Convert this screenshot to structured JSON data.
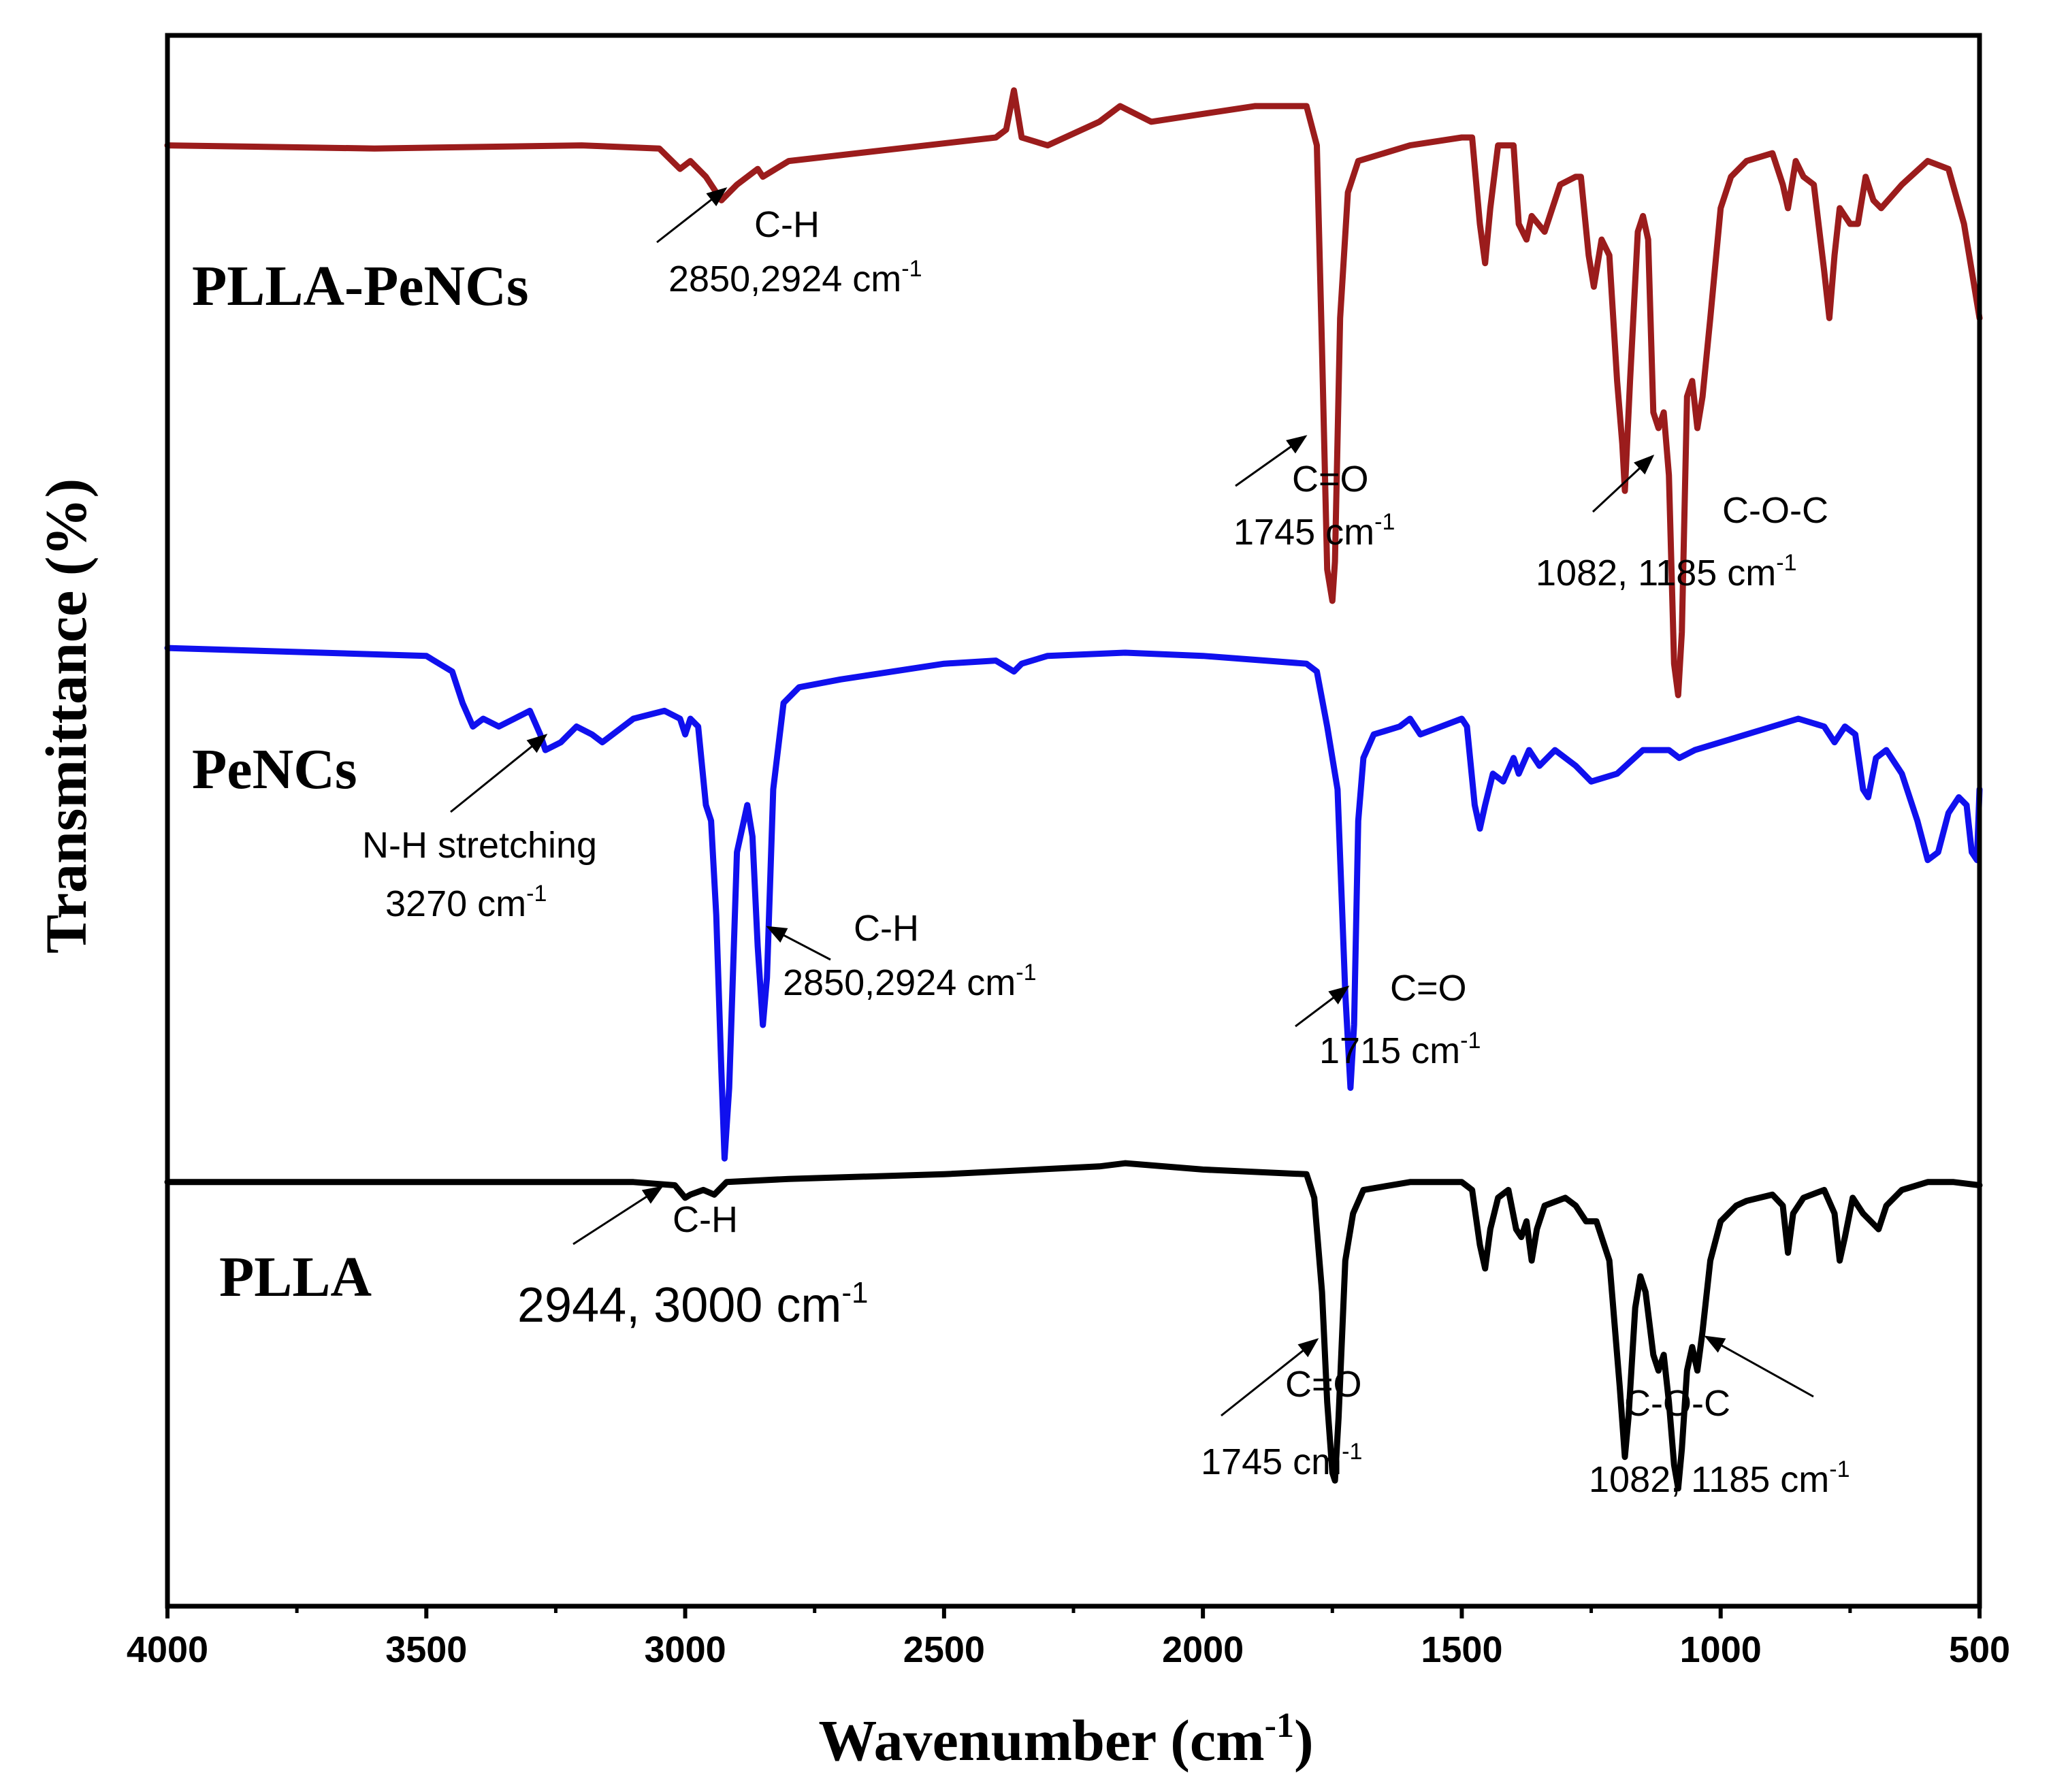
{
  "chart_data": {
    "type": "line",
    "title": "",
    "xlabel": "Wavenumber (cm",
    "xlabel_sup": "-1",
    "xlabel_end": ")",
    "ylabel": "Transmittance (%)",
    "xlim": [
      4000,
      500
    ],
    "x_ticks": [
      4000,
      3500,
      3000,
      2500,
      2000,
      1500,
      1000,
      500
    ],
    "y_ticks": "none",
    "grid": false,
    "legend": "none (series labelled inline)",
    "series": [
      {
        "name": "PLLA-PeNCs",
        "color": "#9b1c1c",
        "baseline": 0.93,
        "points": [
          [
            4000,
            0.93
          ],
          [
            3600,
            0.928
          ],
          [
            3200,
            0.93
          ],
          [
            3050,
            0.928
          ],
          [
            3010,
            0.915
          ],
          [
            2990,
            0.92
          ],
          [
            2960,
            0.91
          ],
          [
            2930,
            0.895
          ],
          [
            2900,
            0.905
          ],
          [
            2860,
            0.915
          ],
          [
            2850,
            0.91
          ],
          [
            2800,
            0.92
          ],
          [
            2400,
            0.935
          ],
          [
            2380,
            0.94
          ],
          [
            2365,
            0.965
          ],
          [
            2350,
            0.935
          ],
          [
            2300,
            0.93
          ],
          [
            2200,
            0.945
          ],
          [
            2160,
            0.955
          ],
          [
            2100,
            0.945
          ],
          [
            1900,
            0.955
          ],
          [
            1800,
            0.955
          ],
          [
            1780,
            0.93
          ],
          [
            1770,
            0.8
          ],
          [
            1760,
            0.66
          ],
          [
            1750,
            0.64
          ],
          [
            1745,
            0.665
          ],
          [
            1735,
            0.82
          ],
          [
            1720,
            0.9
          ],
          [
            1700,
            0.92
          ],
          [
            1600,
            0.93
          ],
          [
            1500,
            0.935
          ],
          [
            1480,
            0.935
          ],
          [
            1465,
            0.88
          ],
          [
            1455,
            0.855
          ],
          [
            1445,
            0.89
          ],
          [
            1430,
            0.93
          ],
          [
            1400,
            0.93
          ],
          [
            1390,
            0.88
          ],
          [
            1375,
            0.87
          ],
          [
            1365,
            0.885
          ],
          [
            1340,
            0.875
          ],
          [
            1310,
            0.905
          ],
          [
            1280,
            0.91
          ],
          [
            1270,
            0.91
          ],
          [
            1255,
            0.86
          ],
          [
            1245,
            0.84
          ],
          [
            1230,
            0.87
          ],
          [
            1215,
            0.86
          ],
          [
            1200,
            0.78
          ],
          [
            1190,
            0.74
          ],
          [
            1185,
            0.71
          ],
          [
            1175,
            0.78
          ],
          [
            1160,
            0.875
          ],
          [
            1150,
            0.885
          ],
          [
            1140,
            0.87
          ],
          [
            1130,
            0.76
          ],
          [
            1120,
            0.75
          ],
          [
            1110,
            0.76
          ],
          [
            1100,
            0.72
          ],
          [
            1090,
            0.6
          ],
          [
            1082,
            0.58
          ],
          [
            1075,
            0.62
          ],
          [
            1065,
            0.77
          ],
          [
            1055,
            0.78
          ],
          [
            1045,
            0.75
          ],
          [
            1035,
            0.77
          ],
          [
            1020,
            0.82
          ],
          [
            1000,
            0.89
          ],
          [
            980,
            0.91
          ],
          [
            950,
            0.92
          ],
          [
            900,
            0.925
          ],
          [
            880,
            0.905
          ],
          [
            870,
            0.89
          ],
          [
            855,
            0.92
          ],
          [
            840,
            0.91
          ],
          [
            820,
            0.905
          ],
          [
            800,
            0.85
          ],
          [
            790,
            0.82
          ],
          [
            780,
            0.86
          ],
          [
            770,
            0.89
          ],
          [
            750,
            0.88
          ],
          [
            735,
            0.88
          ],
          [
            720,
            0.91
          ],
          [
            705,
            0.895
          ],
          [
            690,
            0.89
          ],
          [
            650,
            0.905
          ],
          [
            600,
            0.92
          ],
          [
            560,
            0.915
          ],
          [
            530,
            0.88
          ],
          [
            510,
            0.84
          ],
          [
            500,
            0.82
          ]
        ]
      },
      {
        "name": "PeNCs",
        "color": "#1010ee",
        "baseline": 0.61,
        "points": [
          [
            4000,
            0.61
          ],
          [
            3500,
            0.605
          ],
          [
            3450,
            0.595
          ],
          [
            3430,
            0.575
          ],
          [
            3410,
            0.56
          ],
          [
            3390,
            0.565
          ],
          [
            3360,
            0.56
          ],
          [
            3330,
            0.565
          ],
          [
            3300,
            0.57
          ],
          [
            3280,
            0.555
          ],
          [
            3270,
            0.545
          ],
          [
            3240,
            0.55
          ],
          [
            3210,
            0.56
          ],
          [
            3180,
            0.555
          ],
          [
            3160,
            0.55
          ],
          [
            3100,
            0.565
          ],
          [
            3040,
            0.57
          ],
          [
            3010,
            0.565
          ],
          [
            3000,
            0.555
          ],
          [
            2990,
            0.565
          ],
          [
            2975,
            0.56
          ],
          [
            2960,
            0.51
          ],
          [
            2950,
            0.5
          ],
          [
            2940,
            0.44
          ],
          [
            2930,
            0.34
          ],
          [
            2924,
            0.285
          ],
          [
            2915,
            0.33
          ],
          [
            2900,
            0.48
          ],
          [
            2880,
            0.51
          ],
          [
            2870,
            0.49
          ],
          [
            2860,
            0.42
          ],
          [
            2850,
            0.37
          ],
          [
            2842,
            0.4
          ],
          [
            2830,
            0.52
          ],
          [
            2810,
            0.575
          ],
          [
            2780,
            0.585
          ],
          [
            2700,
            0.59
          ],
          [
            2500,
            0.6
          ],
          [
            2400,
            0.602
          ],
          [
            2365,
            0.595
          ],
          [
            2350,
            0.6
          ],
          [
            2300,
            0.605
          ],
          [
            2150,
            0.607
          ],
          [
            2000,
            0.605
          ],
          [
            1800,
            0.6
          ],
          [
            1780,
            0.595
          ],
          [
            1760,
            0.56
          ],
          [
            1740,
            0.52
          ],
          [
            1725,
            0.39
          ],
          [
            1715,
            0.33
          ],
          [
            1708,
            0.37
          ],
          [
            1700,
            0.5
          ],
          [
            1690,
            0.54
          ],
          [
            1670,
            0.555
          ],
          [
            1620,
            0.56
          ],
          [
            1600,
            0.565
          ],
          [
            1580,
            0.555
          ],
          [
            1500,
            0.565
          ],
          [
            1490,
            0.56
          ],
          [
            1475,
            0.51
          ],
          [
            1465,
            0.495
          ],
          [
            1455,
            0.51
          ],
          [
            1440,
            0.53
          ],
          [
            1420,
            0.525
          ],
          [
            1400,
            0.54
          ],
          [
            1390,
            0.53
          ],
          [
            1370,
            0.545
          ],
          [
            1350,
            0.535
          ],
          [
            1320,
            0.545
          ],
          [
            1280,
            0.535
          ],
          [
            1250,
            0.525
          ],
          [
            1200,
            0.53
          ],
          [
            1150,
            0.545
          ],
          [
            1100,
            0.545
          ],
          [
            1080,
            0.54
          ],
          [
            1050,
            0.545
          ],
          [
            1000,
            0.55
          ],
          [
            950,
            0.555
          ],
          [
            900,
            0.56
          ],
          [
            850,
            0.565
          ],
          [
            800,
            0.56
          ],
          [
            780,
            0.55
          ],
          [
            760,
            0.56
          ],
          [
            740,
            0.555
          ],
          [
            725,
            0.52
          ],
          [
            715,
            0.515
          ],
          [
            700,
            0.54
          ],
          [
            680,
            0.545
          ],
          [
            650,
            0.53
          ],
          [
            620,
            0.5
          ],
          [
            600,
            0.475
          ],
          [
            580,
            0.48
          ],
          [
            560,
            0.505
          ],
          [
            540,
            0.515
          ],
          [
            525,
            0.51
          ],
          [
            515,
            0.48
          ],
          [
            505,
            0.475
          ],
          [
            500,
            0.52
          ]
        ]
      },
      {
        "name": "PLLA",
        "color": "#000000",
        "baseline": 0.27,
        "points": [
          [
            4000,
            0.27
          ],
          [
            3500,
            0.27
          ],
          [
            3100,
            0.27
          ],
          [
            3020,
            0.268
          ],
          [
            3000,
            0.26
          ],
          [
            2990,
            0.262
          ],
          [
            2965,
            0.265
          ],
          [
            2944,
            0.262
          ],
          [
            2920,
            0.27
          ],
          [
            2800,
            0.272
          ],
          [
            2500,
            0.275
          ],
          [
            2200,
            0.28
          ],
          [
            2150,
            0.282
          ],
          [
            2000,
            0.278
          ],
          [
            1800,
            0.275
          ],
          [
            1785,
            0.26
          ],
          [
            1770,
            0.2
          ],
          [
            1760,
            0.13
          ],
          [
            1750,
            0.085
          ],
          [
            1745,
            0.08
          ],
          [
            1738,
            0.12
          ],
          [
            1725,
            0.22
          ],
          [
            1710,
            0.25
          ],
          [
            1690,
            0.265
          ],
          [
            1600,
            0.27
          ],
          [
            1500,
            0.27
          ],
          [
            1480,
            0.265
          ],
          [
            1465,
            0.23
          ],
          [
            1455,
            0.215
          ],
          [
            1445,
            0.24
          ],
          [
            1430,
            0.26
          ],
          [
            1410,
            0.265
          ],
          [
            1395,
            0.24
          ],
          [
            1385,
            0.235
          ],
          [
            1375,
            0.245
          ],
          [
            1365,
            0.22
          ],
          [
            1355,
            0.24
          ],
          [
            1340,
            0.255
          ],
          [
            1300,
            0.26
          ],
          [
            1280,
            0.255
          ],
          [
            1260,
            0.245
          ],
          [
            1240,
            0.245
          ],
          [
            1215,
            0.22
          ],
          [
            1205,
            0.18
          ],
          [
            1195,
            0.14
          ],
          [
            1185,
            0.095
          ],
          [
            1178,
            0.12
          ],
          [
            1165,
            0.19
          ],
          [
            1155,
            0.21
          ],
          [
            1145,
            0.2
          ],
          [
            1130,
            0.16
          ],
          [
            1120,
            0.15
          ],
          [
            1110,
            0.16
          ],
          [
            1100,
            0.13
          ],
          [
            1090,
            0.09
          ],
          [
            1082,
            0.075
          ],
          [
            1075,
            0.1
          ],
          [
            1065,
            0.15
          ],
          [
            1055,
            0.165
          ],
          [
            1045,
            0.15
          ],
          [
            1035,
            0.175
          ],
          [
            1020,
            0.22
          ],
          [
            1000,
            0.245
          ],
          [
            970,
            0.255
          ],
          [
            950,
            0.258
          ],
          [
            900,
            0.262
          ],
          [
            880,
            0.255
          ],
          [
            870,
            0.225
          ],
          [
            860,
            0.25
          ],
          [
            840,
            0.26
          ],
          [
            800,
            0.265
          ],
          [
            780,
            0.25
          ],
          [
            770,
            0.22
          ],
          [
            760,
            0.235
          ],
          [
            745,
            0.26
          ],
          [
            735,
            0.255
          ],
          [
            725,
            0.25
          ],
          [
            710,
            0.245
          ],
          [
            695,
            0.24
          ],
          [
            680,
            0.255
          ],
          [
            650,
            0.265
          ],
          [
            600,
            0.27
          ],
          [
            550,
            0.27
          ],
          [
            500,
            0.268
          ]
        ]
      }
    ],
    "series_labels": [
      "PLLA-PeNCs",
      "PeNCs",
      "PLLA"
    ],
    "annotations": [
      {
        "id": "ann-plla-pencs-ch",
        "title": "C-H",
        "value": "2850,2924 cm",
        "sup": "-1",
        "target": [
          2924,
          0.895
        ]
      },
      {
        "id": "ann-plla-pencs-co",
        "title": "C=O",
        "value": "1745 cm",
        "sup": "-1",
        "target": [
          1745,
          0.66
        ]
      },
      {
        "id": "ann-plla-pencs-coc",
        "title": "C-O-C",
        "value": "1082, 1185 cm",
        "sup": "-1",
        "target": [
          1082,
          0.6
        ]
      },
      {
        "id": "ann-pencs-nh",
        "title": "N-H stretching",
        "value": "3270 cm",
        "sup": "-1",
        "target": [
          3270,
          0.545
        ]
      },
      {
        "id": "ann-pencs-ch",
        "title": "C-H",
        "value": "2850,2924 cm",
        "sup": "-1",
        "target": [
          2850,
          0.37
        ]
      },
      {
        "id": "ann-pencs-co",
        "title": "C=O",
        "value": "1715 cm",
        "sup": "-1",
        "target": [
          1715,
          0.33
        ]
      },
      {
        "id": "ann-plla-ch",
        "title": "C-H",
        "value": "2944, 3000 cm",
        "sup": "-1",
        "target": [
          2970,
          0.262
        ]
      },
      {
        "id": "ann-plla-co",
        "title": "C=O",
        "value": "1745 cm",
        "sup": "-1",
        "target": [
          1745,
          0.08
        ]
      },
      {
        "id": "ann-plla-coc",
        "title": "C-O-C",
        "value": "1082, 1185 cm",
        "sup": "-1",
        "target": [
          1082,
          0.075
        ]
      }
    ]
  }
}
